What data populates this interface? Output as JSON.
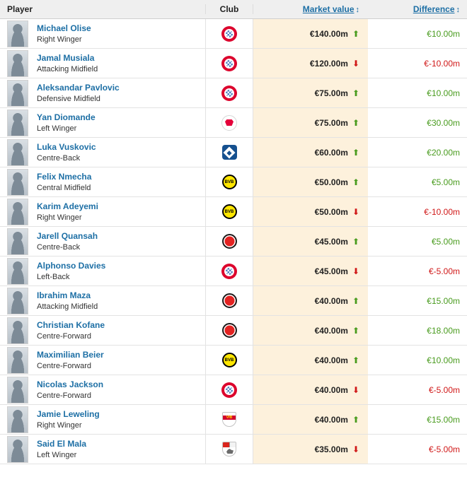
{
  "header": {
    "player": "Player",
    "club": "Club",
    "market_value": "Market value",
    "difference": "Difference"
  },
  "icons": {
    "sort": "↕",
    "up_arrow": "⬆",
    "down_arrow": "⬇",
    "bvb_label": "BVB",
    "vfb_label": "VfB"
  },
  "colors": {
    "link_blue": "#1d6fa5",
    "positive_green": "#489b1d",
    "negative_red": "#d01717",
    "market_value_bg": "#fdf1dc",
    "header_bg": "#efefef"
  },
  "rows": [
    {
      "name": "Michael Olise",
      "position": "Right Winger",
      "club": "Bayern Munich",
      "club_icon": "bayern-munich-crest",
      "market_value": "€140.00m",
      "trend": "up",
      "difference": "€10.00m",
      "difference_sign": "positive"
    },
    {
      "name": "Jamal Musiala",
      "position": "Attacking Midfield",
      "club": "Bayern Munich",
      "club_icon": "bayern-munich-crest",
      "market_value": "€120.00m",
      "trend": "down",
      "difference": "€-10.00m",
      "difference_sign": "negative"
    },
    {
      "name": "Aleksandar Pavlovic",
      "position": "Defensive Midfield",
      "club": "Bayern Munich",
      "club_icon": "bayern-munich-crest",
      "market_value": "€75.00m",
      "trend": "up",
      "difference": "€10.00m",
      "difference_sign": "positive"
    },
    {
      "name": "Yan Diomande",
      "position": "Left Winger",
      "club": "RB Leipzig",
      "club_icon": "rb-leipzig-crest",
      "market_value": "€75.00m",
      "trend": "up",
      "difference": "€30.00m",
      "difference_sign": "positive"
    },
    {
      "name": "Luka Vuskovic",
      "position": "Centre-Back",
      "club": "Hamburger SV",
      "club_icon": "hamburger-sv-crest",
      "market_value": "€60.00m",
      "trend": "up",
      "difference": "€20.00m",
      "difference_sign": "positive"
    },
    {
      "name": "Felix Nmecha",
      "position": "Central Midfield",
      "club": "Borussia Dortmund",
      "club_icon": "borussia-dortmund-crest",
      "market_value": "€50.00m",
      "trend": "up",
      "difference": "€5.00m",
      "difference_sign": "positive"
    },
    {
      "name": "Karim Adeyemi",
      "position": "Right Winger",
      "club": "Borussia Dortmund",
      "club_icon": "borussia-dortmund-crest",
      "market_value": "€50.00m",
      "trend": "down",
      "difference": "€-10.00m",
      "difference_sign": "negative"
    },
    {
      "name": "Jarell Quansah",
      "position": "Centre-Back",
      "club": "Bayer 04 Leverkusen",
      "club_icon": "bayer-leverkusen-crest",
      "market_value": "€45.00m",
      "trend": "up",
      "difference": "€5.00m",
      "difference_sign": "positive"
    },
    {
      "name": "Alphonso Davies",
      "position": "Left-Back",
      "club": "Bayern Munich",
      "club_icon": "bayern-munich-crest",
      "market_value": "€45.00m",
      "trend": "down",
      "difference": "€-5.00m",
      "difference_sign": "negative"
    },
    {
      "name": "Ibrahim Maza",
      "position": "Attacking Midfield",
      "club": "Bayer 04 Leverkusen",
      "club_icon": "bayer-leverkusen-crest",
      "market_value": "€40.00m",
      "trend": "up",
      "difference": "€15.00m",
      "difference_sign": "positive"
    },
    {
      "name": "Christian Kofane",
      "position": "Centre-Forward",
      "club": "Bayer 04 Leverkusen",
      "club_icon": "bayer-leverkusen-crest",
      "market_value": "€40.00m",
      "trend": "up",
      "difference": "€18.00m",
      "difference_sign": "positive"
    },
    {
      "name": "Maximilian Beier",
      "position": "Centre-Forward",
      "club": "Borussia Dortmund",
      "club_icon": "borussia-dortmund-crest",
      "market_value": "€40.00m",
      "trend": "up",
      "difference": "€10.00m",
      "difference_sign": "positive"
    },
    {
      "name": "Nicolas Jackson",
      "position": "Centre-Forward",
      "club": "Bayern Munich",
      "club_icon": "bayern-munich-crest",
      "market_value": "€40.00m",
      "trend": "down",
      "difference": "€-5.00m",
      "difference_sign": "negative"
    },
    {
      "name": "Jamie Leweling",
      "position": "Right Winger",
      "club": "VfB Stuttgart",
      "club_icon": "vfb-stuttgart-crest",
      "market_value": "€40.00m",
      "trend": "up",
      "difference": "€15.00m",
      "difference_sign": "positive"
    },
    {
      "name": "Said El Mala",
      "position": "Left Winger",
      "club": "1. FC Köln",
      "club_icon": "fc-koeln-crest",
      "market_value": "€35.00m",
      "trend": "down",
      "difference": "€-5.00m",
      "difference_sign": "negative"
    }
  ]
}
